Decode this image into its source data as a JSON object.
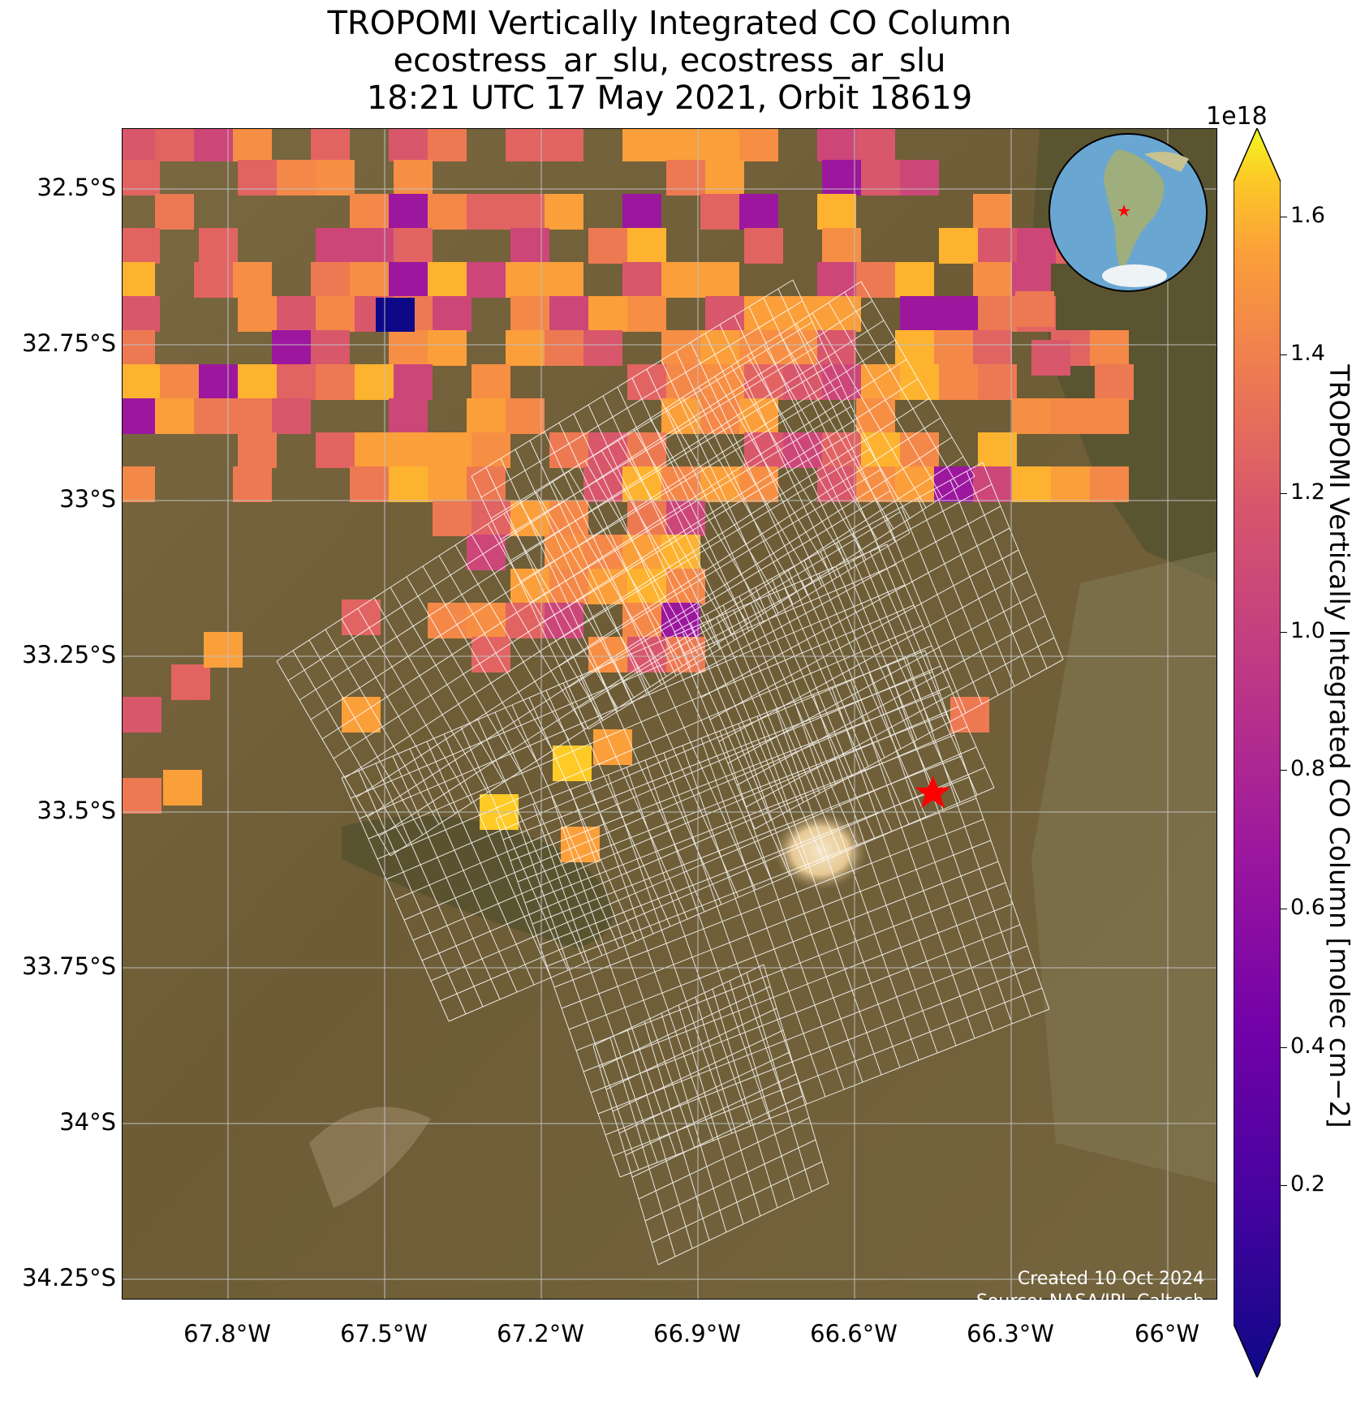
{
  "title": {
    "line1": "TROPOMI Vertically Integrated CO Column",
    "line2": "ecostress_ar_slu, ecostress_ar_slu",
    "line3": "18:21 UTC 17 May 2021, Orbit 18619"
  },
  "axes": {
    "lat_labels": [
      "32.5°S",
      "32.75°S",
      "33°S",
      "33.25°S",
      "33.5°S",
      "33.75°S",
      "34°S",
      "34.25°S"
    ],
    "lon_labels": [
      "67.8°W",
      "67.5°W",
      "67.2°W",
      "66.9°W",
      "66.6°W",
      "66.3°W",
      "66°W"
    ]
  },
  "colorbar": {
    "label": "TROPOMI Vertically Integrated CO Column [molec cm−2]",
    "exponent": "1e18",
    "colormap": "plasma",
    "range": [
      0.0,
      1.65
    ],
    "tick_labels": [
      "0.2",
      "0.4",
      "0.6",
      "0.8",
      "1.0",
      "1.2",
      "1.4",
      "1.6"
    ],
    "extend": "both"
  },
  "credits": {
    "created": "Created 10 Oct 2024",
    "source": "Source: NASA/JPL-Caltech"
  },
  "marker": {
    "symbol": "red-star",
    "lon": -66.45,
    "lat": -33.47
  },
  "inset_globe": {
    "content": "South America with red star marker"
  }
}
